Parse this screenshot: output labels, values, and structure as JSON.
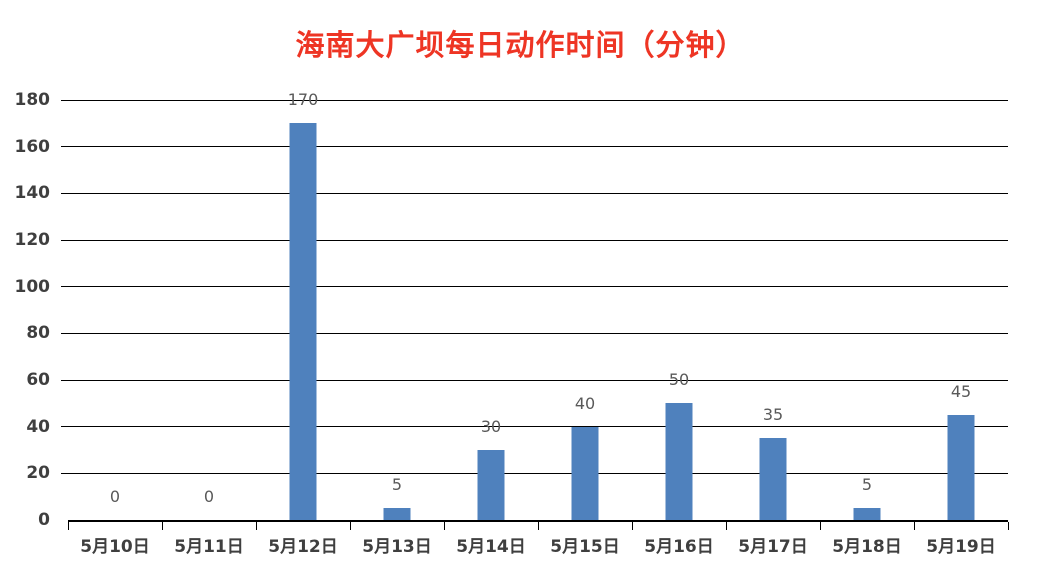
{
  "chart_data": {
    "type": "bar",
    "title": "海南大广坝每日动作时间（分钟）",
    "categories": [
      "5月10日",
      "5月11日",
      "5月12日",
      "5月13日",
      "5月14日",
      "5月15日",
      "5月16日",
      "5月17日",
      "5月18日",
      "5月19日"
    ],
    "values": [
      0,
      0,
      170,
      5,
      30,
      40,
      50,
      35,
      5,
      45
    ],
    "xlabel": "",
    "ylabel": "",
    "ylim": [
      0,
      180
    ],
    "ytick_step": 20,
    "grid": true,
    "legend": "none",
    "bar_color": "#4f81bd",
    "title_color": "#ee3524",
    "value_label_color": "#595959",
    "axis_text_color": "#3f3f3f",
    "gridline_color": "#000000"
  }
}
